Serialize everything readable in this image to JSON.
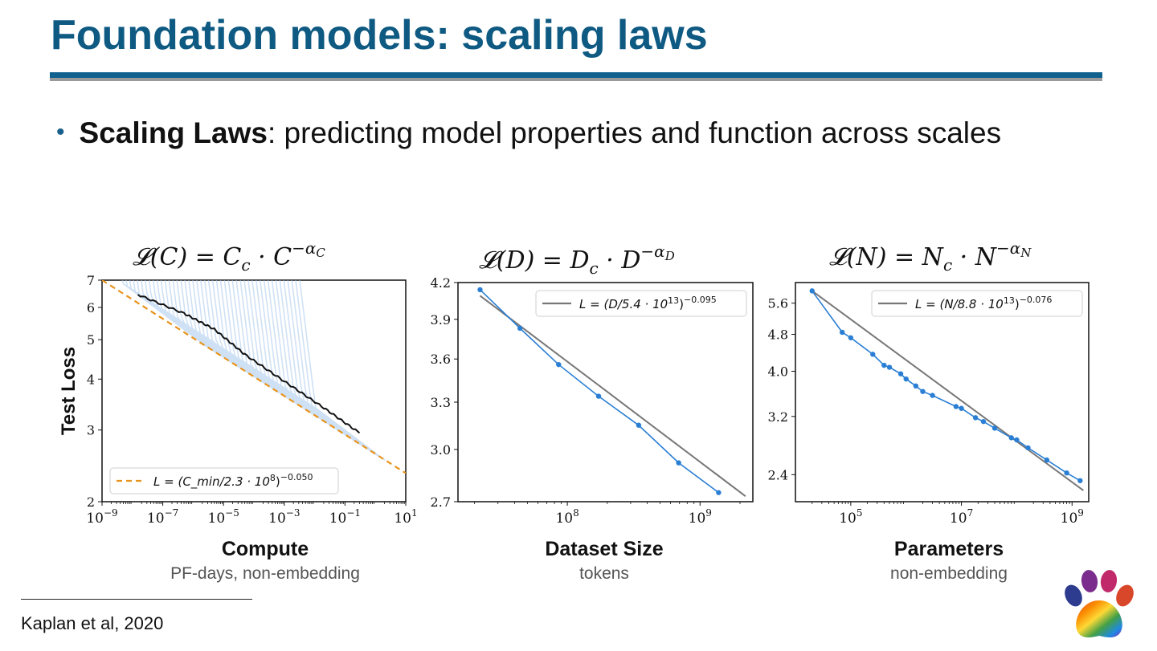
{
  "slide": {
    "title": "Foundation models: scaling laws",
    "bullet_bold": "Scaling Laws",
    "bullet_rest": ": predicting model properties and function across scales",
    "citation": "Kaplan et al, 2020"
  },
  "chart_data": [
    {
      "type": "line",
      "formula": "𝓛(C) = C_c · C^(−α_C)",
      "formula_parts": {
        "lhs": "𝓛(C) = C",
        "sub": "c",
        "mid": " · C",
        "sup_a": "−α",
        "sup_sub": "C"
      },
      "xlabel": "Compute",
      "xsublabel": "PF-days, non-embedding",
      "ylabel": "Test Loss",
      "xscale": "log",
      "yscale": "log",
      "xlim": [
        1e-09,
        10
      ],
      "ylim": [
        2,
        7
      ],
      "xticks": [
        1e-09,
        1e-07,
        1e-05,
        0.001,
        0.1,
        10
      ],
      "xtick_labels": [
        [
          "10",
          "−9"
        ],
        [
          "10",
          "−7"
        ],
        [
          "10",
          "−5"
        ],
        [
          "10",
          "−3"
        ],
        [
          "10",
          "−1"
        ],
        [
          "10",
          "1"
        ]
      ],
      "yticks": [
        2,
        3,
        4,
        5,
        6,
        7
      ],
      "ytick_labels": [
        "2",
        "3",
        "4",
        "5",
        "6",
        "7"
      ],
      "legend": {
        "position": "bottom-left",
        "text": "L = (C_min/2.3 · 10^8)^−0.050"
      },
      "series": [
        {
          "name": "L = (C_min/2.3 · 10^8)^−0.050",
          "style": "dashed",
          "color": "#e8931c",
          "x": [
            1e-09,
            10
          ],
          "y": [
            7.0,
            2.35
          ]
        },
        {
          "style": "solid",
          "color": "#111111",
          "x": [
            1.5e-08,
            5e-07,
            5e-06,
            5e-05,
            0.001,
            0.02,
            0.3
          ],
          "y": [
            6.45,
            5.8,
            5.3,
            4.6,
            3.95,
            3.4,
            2.95
          ]
        }
      ],
      "learning_curves_color": "#a9c9ee"
    },
    {
      "type": "line",
      "formula_parts": {
        "lhs": "𝓛(D) = D",
        "sub": "c",
        "mid": " · D",
        "sup_a": "−α",
        "sup_sub": "D"
      },
      "xlabel": "Dataset Size",
      "xsublabel": "tokens",
      "xscale": "log",
      "yscale": "log",
      "xlim": [
        15000000.0,
        2500000000.0
      ],
      "ylim": [
        2.7,
        4.2
      ],
      "xticks": [
        100000000.0,
        1000000000.0
      ],
      "xtick_labels": [
        [
          "10",
          "8"
        ],
        [
          "10",
          "9"
        ]
      ],
      "yticks": [
        2.7,
        3.0,
        3.3,
        3.6,
        3.9,
        4.2
      ],
      "ytick_labels": [
        "2.7",
        "3.0",
        "3.3",
        "3.6",
        "3.9",
        "4.2"
      ],
      "legend": {
        "position": "top-right",
        "text": "L = (D/5.4 · 10^13)^−0.095"
      },
      "series": [
        {
          "name": "L = (D/5.4 · 10^13)^−0.095",
          "style": "fit",
          "color": "#777777",
          "x": [
            22000000.0,
            2200000000.0
          ],
          "y": [
            4.09,
            2.73
          ]
        },
        {
          "style": "points",
          "color": "#2a7fd4",
          "x": [
            22000000.0,
            44000000.0,
            86000000.0,
            172000000.0,
            345000000.0,
            690000000.0,
            1380000000.0
          ],
          "y": [
            4.14,
            3.83,
            3.56,
            3.34,
            3.15,
            2.92,
            2.75
          ]
        }
      ]
    },
    {
      "type": "line",
      "formula_parts": {
        "lhs": "𝓛(N) = N",
        "sub": "c",
        "mid": " · N",
        "sup_a": "−α",
        "sup_sub": "N"
      },
      "xlabel": "Parameters",
      "xsublabel": "non-embedding",
      "xscale": "log",
      "yscale": "log",
      "xlim": [
        10000.0,
        2000000000.0
      ],
      "ylim": [
        2.1,
        6.2
      ],
      "xticks": [
        100000.0,
        10000000.0,
        1000000000.0
      ],
      "xtick_labels": [
        [
          "10",
          "5"
        ],
        [
          "10",
          "7"
        ],
        [
          "10",
          "9"
        ]
      ],
      "yticks": [
        2.4,
        3.2,
        4.0,
        4.8,
        5.6
      ],
      "ytick_labels": [
        "2.4",
        "3.2",
        "4.0",
        "4.8",
        "5.6"
      ],
      "legend": {
        "position": "top-right",
        "text": "L = (N/8.8 · 10^13)^−0.076"
      },
      "series": [
        {
          "name": "L = (N/8.8 · 10^13)^−0.076",
          "style": "fit",
          "color": "#777777",
          "x": [
            20000.0,
            1600000000.0
          ],
          "y": [
            5.95,
            2.22
          ]
        },
        {
          "style": "points",
          "color": "#2a7fd4",
          "x": [
            20000.0,
            70000.0,
            100000.0,
            250000.0,
            400000.0,
            500000.0,
            800000.0,
            1000000.0,
            1500000.0,
            2000000.0,
            3000000.0,
            8000000.0,
            10000000.0,
            18000000.0,
            25000000.0,
            40000000.0,
            80000000.0,
            100000000.0,
            160000000.0,
            350000000.0,
            800000000.0,
            1400000000.0
          ],
          "y": [
            5.95,
            4.85,
            4.72,
            4.35,
            4.12,
            4.08,
            3.95,
            3.85,
            3.72,
            3.62,
            3.55,
            3.36,
            3.33,
            3.18,
            3.12,
            3.02,
            2.88,
            2.85,
            2.74,
            2.58,
            2.42,
            2.33
          ]
        }
      ]
    }
  ],
  "icons": {
    "logo": "paw-logo-icon"
  }
}
